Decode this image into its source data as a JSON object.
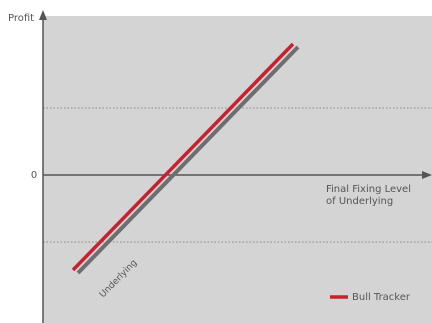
{
  "chart_data": {
    "type": "line",
    "y_axis_label": "Profit",
    "x_axis_label_lines": [
      "Final Fixing Level",
      "of Underlying"
    ],
    "zero_label": "0",
    "grid": "dotted",
    "legend_placement": "bottom-right",
    "background_color": "#d4d4d4",
    "axis_color": "#555555",
    "series": [
      {
        "name": "Underlying",
        "color": "#6d6e71",
        "label_placement": "along-line-lower-left",
        "points": [
          {
            "x": 35,
            "y": -98
          },
          {
            "x": 255,
            "y": 128
          }
        ]
      },
      {
        "name": "Bull Tracker",
        "color": "#c8202f",
        "points": [
          {
            "x": 30,
            "y": -95
          },
          {
            "x": 250,
            "y": 131
          }
        ]
      }
    ],
    "gridlines_y": [
      -67,
      67
    ]
  }
}
